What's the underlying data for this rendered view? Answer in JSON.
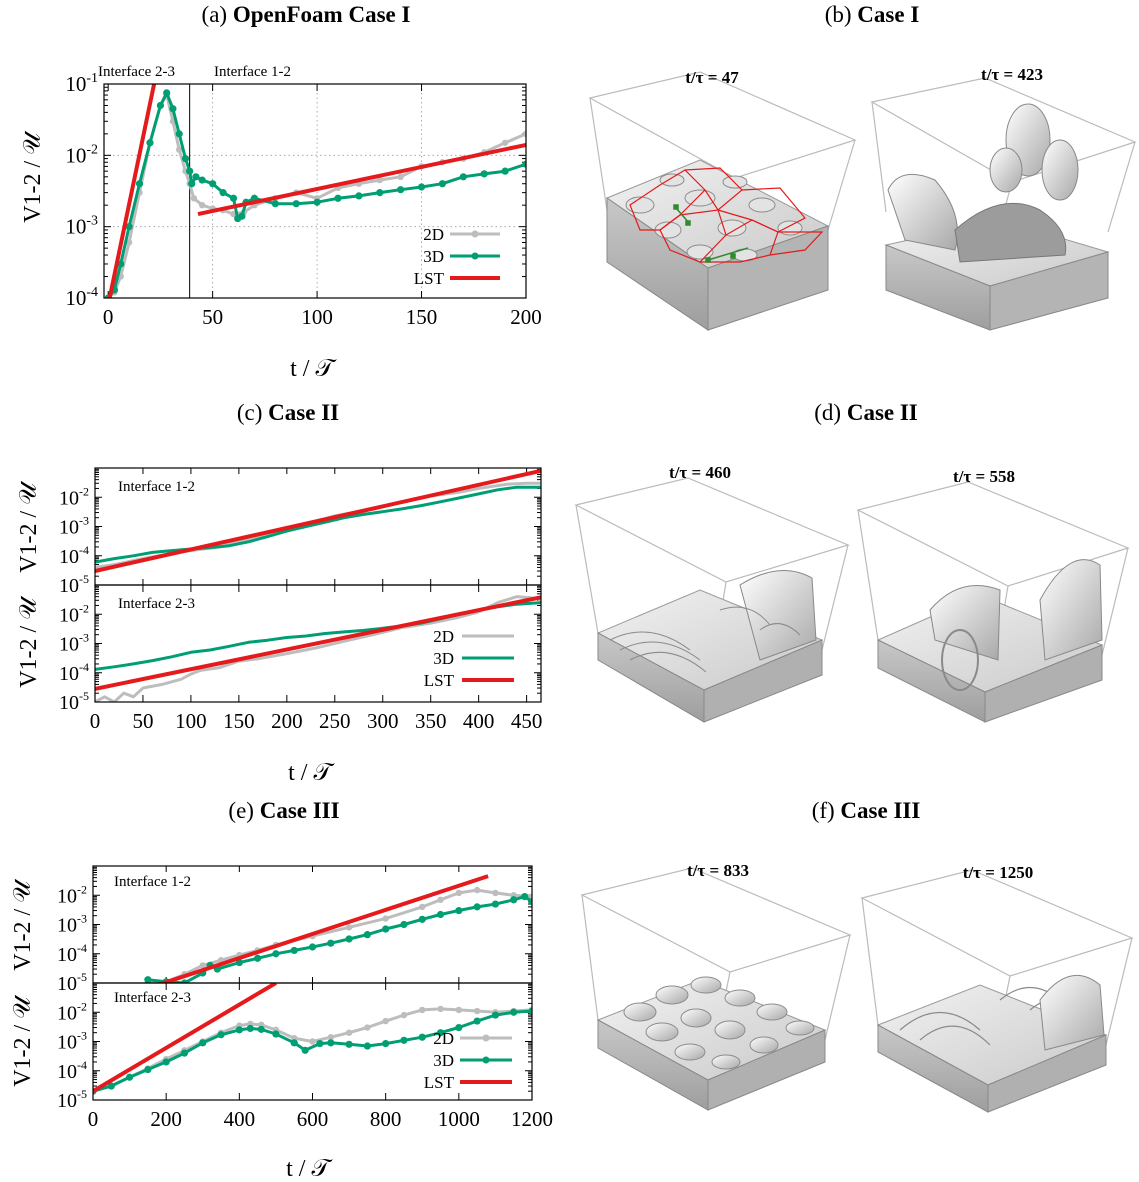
{
  "labels": {
    "xlabel": "t / 𝒯",
    "ylabel": "V1-2 / 𝒰",
    "iface12": "Interface 1-2",
    "iface23": "Interface 2-3"
  },
  "panels": {
    "a": {
      "prefix": "(a) ",
      "bold": "OpenFoam Case I"
    },
    "b": {
      "prefix": "(b) ",
      "bold": "Case I"
    },
    "c": {
      "prefix": "(c) ",
      "bold": "Case II"
    },
    "d": {
      "prefix": "(d) ",
      "bold": "Case II"
    },
    "e": {
      "prefix": "(e) ",
      "bold": "Case III"
    },
    "f": {
      "prefix": "(f) ",
      "bold": "Case III"
    }
  },
  "snapshots": {
    "b": [
      "t/τ = 47",
      "t/τ = 423"
    ],
    "d": [
      "t/τ = 460",
      "t/τ = 558"
    ],
    "f": [
      "t/τ = 833",
      "t/τ = 1250"
    ]
  },
  "colors": {
    "twoD": "#bdbdbd",
    "threeD": "#009e73",
    "lst": "#e41a1c",
    "axis": "#000000",
    "grid": "#9a9a9a"
  },
  "chart_data": [
    {
      "id": "a",
      "type": "line",
      "title": "OpenFoam Case I",
      "xlabel": "t / 𝒯",
      "ylabel": "V1-2 / 𝒰",
      "xlim": [
        -2,
        200
      ],
      "ylim": [
        0.0001,
        0.1
      ],
      "yscale": "log",
      "grid": true,
      "legend": "bottom-right",
      "xticks": [
        "0",
        "50",
        "100",
        "150",
        "200"
      ],
      "yticks": [
        "10-4",
        "10-3",
        "10-2",
        "10-1"
      ],
      "annotations": [
        "Interface 2-3",
        "Interface 1-2"
      ],
      "vline": 39,
      "series": [
        {
          "name": "2D",
          "x": [
            0,
            3,
            6,
            10,
            15,
            20,
            25,
            28,
            31,
            34,
            37,
            39,
            41,
            45,
            50,
            55,
            60,
            65,
            70,
            80,
            90,
            100,
            110,
            120,
            130,
            140,
            150,
            160,
            170,
            180,
            190,
            200
          ],
          "y": [
            0.0001,
            0.00012,
            0.0002,
            0.0006,
            0.003,
            0.015,
            0.05,
            0.07,
            0.03,
            0.012,
            0.006,
            0.004,
            0.0025,
            0.002,
            0.0018,
            0.0017,
            0.0015,
            0.0016,
            0.002,
            0.0025,
            0.003,
            0.0025,
            0.0035,
            0.004,
            0.0045,
            0.005,
            0.007,
            0.008,
            0.009,
            0.011,
            0.015,
            0.02
          ]
        },
        {
          "name": "3D",
          "x": [
            0,
            3,
            6,
            10,
            15,
            20,
            25,
            28,
            31,
            34,
            37,
            39,
            40,
            42,
            45,
            50,
            55,
            60,
            62,
            64,
            66,
            70,
            80,
            90,
            100,
            110,
            120,
            130,
            140,
            150,
            160,
            170,
            180,
            190,
            200
          ],
          "y": [
            0.0001,
            0.00013,
            0.0003,
            0.001,
            0.004,
            0.015,
            0.05,
            0.075,
            0.045,
            0.02,
            0.009,
            0.006,
            0.004,
            0.005,
            0.0045,
            0.004,
            0.003,
            0.0025,
            0.0013,
            0.0014,
            0.0022,
            0.0025,
            0.0021,
            0.0021,
            0.0022,
            0.0025,
            0.0027,
            0.003,
            0.0033,
            0.0036,
            0.004,
            0.005,
            0.0055,
            0.006,
            0.0075
          ]
        },
        {
          "name": "LST",
          "segments": [
            [
              [
                0,
                8e-05
              ],
              [
                22,
                0.1
              ]
            ],
            [
              [
                43,
                0.0015
              ],
              [
                200,
                0.014
              ]
            ]
          ]
        }
      ]
    },
    {
      "id": "c1",
      "type": "line",
      "title": "Case II",
      "annotation": "Interface 1-2",
      "xlabel": "t / 𝒯",
      "ylabel": "V1-2 / 𝒰",
      "xlim": [
        0,
        465
      ],
      "ylim": [
        1e-05,
        0.1
      ],
      "yscale": "log",
      "grid": false,
      "yticks": [
        "10-5",
        "10-4",
        "10-3",
        "10-2"
      ],
      "series": [
        {
          "name": "2D",
          "x": [
            0,
            20,
            50,
            80,
            100,
            130,
            150,
            180,
            200,
            230,
            250,
            280,
            300,
            330,
            350,
            380,
            400,
            430,
            450,
            465
          ],
          "y": [
            4e-05,
            5e-05,
            8e-05,
            0.00012,
            0.00015,
            0.0002,
            0.0003,
            0.0005,
            0.0009,
            0.0015,
            0.0023,
            0.0035,
            0.005,
            0.008,
            0.011,
            0.015,
            0.02,
            0.028,
            0.03,
            0.03
          ]
        },
        {
          "name": "3D",
          "x": [
            0,
            20,
            40,
            60,
            80,
            100,
            120,
            140,
            160,
            180,
            200,
            220,
            240,
            260,
            280,
            300,
            320,
            340,
            360,
            380,
            400,
            420,
            440,
            465
          ],
          "y": [
            6e-05,
            8e-05,
            0.0001,
            0.00013,
            0.00015,
            0.00017,
            0.00019,
            0.00022,
            0.0003,
            0.00045,
            0.0007,
            0.001,
            0.0014,
            0.002,
            0.0026,
            0.0032,
            0.004,
            0.0052,
            0.007,
            0.0095,
            0.013,
            0.018,
            0.022,
            0.022
          ]
        },
        {
          "name": "LST",
          "x": [
            0,
            465
          ],
          "y": [
            3e-05,
            0.08
          ]
        }
      ]
    },
    {
      "id": "c2",
      "type": "line",
      "title": "Case II",
      "annotation": "Interface 2-3",
      "xlabel": "t / 𝒯",
      "ylabel": "V1-2 / 𝒰",
      "xlim": [
        0,
        465
      ],
      "ylim": [
        1e-05,
        0.1
      ],
      "yscale": "log",
      "grid": false,
      "legend": "right",
      "xticks": [
        "0",
        "50",
        "100",
        "150",
        "200",
        "250",
        "300",
        "350",
        "400",
        "450"
      ],
      "yticks": [
        "10-5",
        "10-4",
        "10-3",
        "10-2"
      ],
      "series": [
        {
          "name": "2D",
          "x": [
            0,
            10,
            20,
            30,
            40,
            50,
            70,
            90,
            100,
            110,
            130,
            150,
            170,
            200,
            230,
            260,
            290,
            320,
            350,
            380,
            400,
            420,
            440,
            460,
            465
          ],
          "y": [
            1e-05,
            1.5e-05,
            1e-05,
            2e-05,
            1.5e-05,
            3e-05,
            4e-05,
            6e-05,
            9e-05,
            0.00012,
            0.00015,
            0.00025,
            0.0003,
            0.00045,
            0.0007,
            0.0012,
            0.002,
            0.0035,
            0.005,
            0.008,
            0.012,
            0.025,
            0.04,
            0.035,
            0.03
          ]
        },
        {
          "name": "3D",
          "x": [
            0,
            20,
            40,
            60,
            80,
            100,
            120,
            140,
            160,
            180,
            200,
            220,
            240,
            260,
            280,
            300,
            320,
            340,
            360,
            380,
            400,
            420,
            440,
            465
          ],
          "y": [
            0.00013,
            0.00016,
            0.0002,
            0.00026,
            0.00035,
            0.0005,
            0.0006,
            0.0008,
            0.0011,
            0.0013,
            0.0016,
            0.0018,
            0.0022,
            0.0025,
            0.0028,
            0.0033,
            0.004,
            0.005,
            0.007,
            0.01,
            0.014,
            0.018,
            0.022,
            0.025
          ]
        },
        {
          "name": "LST",
          "x": [
            0,
            465
          ],
          "y": [
            2.8e-05,
            0.038
          ]
        }
      ]
    },
    {
      "id": "e1",
      "type": "line",
      "title": "Case III",
      "annotation": "Interface 1-2",
      "xlabel": "t / 𝒯",
      "ylabel": "V1-2 / 𝒰",
      "xlim": [
        0,
        1200
      ],
      "ylim": [
        1e-05,
        0.1
      ],
      "yscale": "log",
      "grid": false,
      "yticks": [
        "10-5",
        "10-4",
        "10-3",
        "10-2"
      ],
      "series": [
        {
          "name": "2D",
          "x": [
            150,
            200,
            250,
            300,
            350,
            400,
            450,
            500,
            600,
            700,
            800,
            900,
            950,
            1000,
            1050,
            1100,
            1150,
            1200
          ],
          "y": [
            1e-05,
            1.1e-05,
            2e-05,
            4e-05,
            6e-05,
            9e-05,
            0.00013,
            0.0002,
            0.0004,
            0.0008,
            0.0016,
            0.004,
            0.007,
            0.012,
            0.015,
            0.012,
            0.01,
            0.009
          ]
        },
        {
          "name": "3D",
          "x": [
            150,
            200,
            250,
            300,
            320,
            340,
            400,
            450,
            500,
            550,
            600,
            650,
            700,
            750,
            800,
            850,
            900,
            950,
            1000,
            1050,
            1100,
            1150,
            1180,
            1200
          ],
          "y": [
            1.3e-05,
            1.1e-05,
            1e-05,
            2.2e-05,
            4e-05,
            3e-05,
            5e-05,
            7e-05,
            0.0001,
            0.00013,
            0.00017,
            0.00023,
            0.00032,
            0.00045,
            0.0007,
            0.001,
            0.0015,
            0.0022,
            0.003,
            0.004,
            0.005,
            0.007,
            0.009,
            0.006
          ]
        },
        {
          "name": "LST",
          "x": [
            170,
            1080
          ],
          "y": [
            8e-06,
            0.045
          ]
        }
      ]
    },
    {
      "id": "e2",
      "type": "line",
      "title": "Case III",
      "annotation": "Interface 2-3",
      "xlabel": "t / 𝒯",
      "ylabel": "V1-2 / 𝒰",
      "xlim": [
        0,
        1200
      ],
      "ylim": [
        1e-05,
        0.1
      ],
      "yscale": "log",
      "grid": false,
      "legend": "right",
      "xticks": [
        "0",
        "200",
        "400",
        "600",
        "800",
        "1000",
        "1200"
      ],
      "yticks": [
        "10-5",
        "10-4",
        "10-3",
        "10-2"
      ],
      "series": [
        {
          "name": "2D",
          "x": [
            0,
            50,
            100,
            150,
            200,
            250,
            300,
            350,
            400,
            430,
            460,
            500,
            550,
            600,
            650,
            700,
            750,
            800,
            850,
            900,
            950,
            1000,
            1050,
            1100,
            1150,
            1200
          ],
          "y": [
            2e-05,
            3e-05,
            6e-05,
            0.00012,
            0.00025,
            0.0005,
            0.001,
            0.002,
            0.0035,
            0.004,
            0.0037,
            0.0025,
            0.0013,
            0.001,
            0.0014,
            0.002,
            0.003,
            0.005,
            0.008,
            0.012,
            0.013,
            0.012,
            0.011,
            0.01,
            0.011,
            0.012
          ]
        },
        {
          "name": "3D",
          "x": [
            0,
            50,
            100,
            150,
            200,
            250,
            300,
            350,
            400,
            430,
            460,
            500,
            550,
            580,
            620,
            650,
            700,
            750,
            800,
            850,
            900,
            950,
            1000,
            1050,
            1100,
            1150,
            1200
          ],
          "y": [
            2e-05,
            3e-05,
            6e-05,
            0.00011,
            0.0002,
            0.0004,
            0.0009,
            0.0017,
            0.0025,
            0.0028,
            0.0026,
            0.0018,
            0.0009,
            0.0005,
            0.00085,
            0.0009,
            0.0008,
            0.0007,
            0.00085,
            0.0011,
            0.0014,
            0.002,
            0.003,
            0.005,
            0.008,
            0.01,
            0.011
          ]
        },
        {
          "name": "LST",
          "x": [
            0,
            500
          ],
          "y": [
            2e-05,
            0.1
          ]
        }
      ]
    }
  ]
}
